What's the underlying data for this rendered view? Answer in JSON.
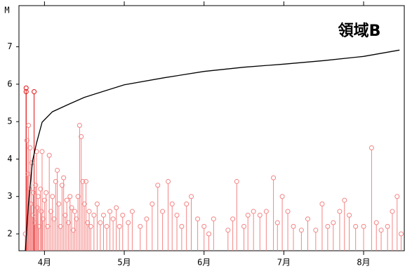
{
  "chart_data": {
    "type": "stem",
    "y_label": "M",
    "annotation": "領域B",
    "annotation_color": "#22dd22",
    "xlim": [
      3.68,
      8.51
    ],
    "xticks": [
      {
        "value": 4,
        "label": "4月"
      },
      {
        "value": 5,
        "label": "5月"
      },
      {
        "value": 6,
        "label": "6月"
      },
      {
        "value": 7,
        "label": "7月"
      },
      {
        "value": 8,
        "label": "8月"
      }
    ],
    "ylim": [
      1.55,
      8.1
    ],
    "yticks": [
      2,
      3,
      4,
      5,
      6,
      7
    ],
    "y2lim": [
      0,
      700
    ],
    "series": [
      {
        "color": "#e01010",
        "x": [
          3.77,
          3.77,
          3.87
        ],
        "values": [
          5.9,
          5.8,
          5.8
        ]
      },
      {
        "color": "#f48484",
        "x": [
          3.76,
          3.78,
          3.79,
          3.8,
          3.81,
          3.82,
          3.83,
          3.84,
          3.85,
          3.86,
          3.88,
          3.89,
          3.9,
          3.91,
          3.92,
          3.93,
          3.95,
          3.96,
          3.97,
          3.98,
          4.0,
          4.02,
          4.04,
          4.06,
          4.08,
          4.1,
          4.12,
          4.14,
          4.16,
          4.18,
          4.2,
          4.22,
          4.24,
          4.26,
          4.28,
          4.3,
          4.32,
          4.34,
          4.36,
          4.38,
          4.4,
          4.42,
          4.44,
          4.46,
          4.48,
          4.5,
          4.52,
          4.54,
          4.56,
          4.58,
          4.62,
          4.66,
          4.7,
          4.74,
          4.78,
          4.82,
          4.86,
          4.9,
          4.94,
          4.98,
          5.05,
          5.1,
          5.2,
          5.28,
          5.35,
          5.42,
          5.48,
          5.55,
          5.6,
          5.66,
          5.72,
          5.78,
          5.84,
          5.92,
          6.0,
          6.06,
          6.12,
          6.3,
          6.36,
          6.41,
          6.5,
          6.55,
          6.62,
          6.7,
          6.78,
          6.87,
          6.92,
          6.98,
          7.05,
          7.12,
          7.22,
          7.3,
          7.4,
          7.48,
          7.55,
          7.62,
          7.7,
          7.76,
          7.82,
          7.9,
          8.0,
          8.1,
          8.16,
          8.22,
          8.3,
          8.36,
          8.42,
          8.47
        ],
        "values": [
          2.0,
          4.5,
          3.6,
          4.9,
          3.2,
          4.3,
          2.8,
          3.9,
          2.5,
          3.1,
          2.3,
          3.3,
          4.2,
          2.7,
          3.0,
          2.2,
          3.2,
          2.6,
          4.2,
          2.4,
          2.9,
          3.1,
          2.2,
          4.1,
          2.6,
          3.0,
          2.4,
          3.4,
          3.7,
          2.8,
          2.2,
          3.3,
          3.5,
          2.5,
          2.9,
          2.3,
          3.0,
          2.7,
          2.1,
          2.6,
          2.4,
          3.0,
          4.9,
          4.6,
          3.4,
          2.8,
          3.4,
          2.3,
          2.6,
          2.2,
          2.5,
          2.8,
          2.3,
          2.5,
          2.2,
          2.6,
          2.4,
          2.7,
          2.2,
          2.5,
          2.3,
          2.6,
          2.2,
          2.4,
          2.8,
          3.3,
          2.6,
          3.4,
          2.8,
          2.5,
          2.2,
          2.8,
          3.0,
          2.4,
          2.2,
          2.0,
          2.4,
          2.1,
          2.4,
          3.4,
          2.2,
          2.5,
          2.6,
          2.5,
          2.6,
          3.5,
          2.3,
          3.0,
          2.6,
          2.2,
          2.1,
          2.4,
          2.1,
          2.8,
          2.2,
          2.3,
          2.6,
          2.9,
          2.5,
          2.2,
          2.2,
          4.3,
          2.3,
          2.1,
          2.2,
          2.6,
          3.0,
          2.0
        ]
      },
      {
        "color": "#000000",
        "axis": "y2",
        "x": [
          3.76,
          3.8,
          3.85,
          3.9,
          3.97,
          4.1,
          4.3,
          4.5,
          5.0,
          5.5,
          6.0,
          6.5,
          7.0,
          7.5,
          8.0,
          8.45
        ],
        "values": [
          0,
          135,
          256,
          307,
          367,
          397,
          418,
          438,
          474,
          494,
          512,
          524,
          533,
          543,
          555,
          573
        ]
      }
    ]
  }
}
